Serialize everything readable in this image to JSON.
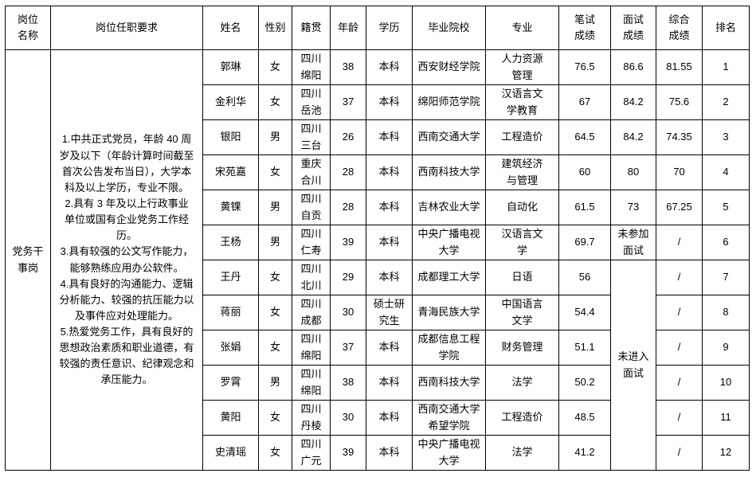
{
  "table": {
    "headers": {
      "position": "岗位\n名称",
      "requirements": "岗位任职要求",
      "name": "姓名",
      "gender": "性别",
      "native_place": "籍贯",
      "age": "年龄",
      "education": "学历",
      "school": "毕业院校",
      "major": "专业",
      "written_score": "笔试\n成绩",
      "interview_score": "面试\n成绩",
      "overall_score": "综合\n成绩",
      "rank": "排名"
    },
    "position_name": "党务干\n事岗",
    "requirements_text": "1.中共正式党员，年龄 40 周\n岁及以下（年龄计算时间截至\n首次公告发布当日），大学本\n科及以上学历，专业不限。\n2.具有 3 年及以上行政事业\n单位或国有企业党务工作经\n历。\n3.具有较强的公文写作能力，\n能够熟练应用办公软件。\n4.具有良好的沟通能力、逻辑\n分析能力、较强的抗压能力以\n及事件应对处理能力。\n5.热爱党务工作，具有良好的\n思想政治素质和职业道德，有\n较强的责任意识、纪律观念和\n承压能力。",
    "merged_interview_note": "未进入\n面试",
    "rows": [
      {
        "name": "郭琳",
        "gender": "女",
        "native": "四川\n绵阳",
        "age": "38",
        "education": "本科",
        "school": "西安财经学院",
        "major": "人力资源\n管理",
        "written": "76.5",
        "interview": "86.6",
        "overall": "81.55",
        "rank": "1"
      },
      {
        "name": "金利华",
        "gender": "女",
        "native": "四川\n岳池",
        "age": "37",
        "education": "本科",
        "school": "绵阳师范学院",
        "major": "汉语言文\n学教育",
        "written": "67",
        "interview": "84.2",
        "overall": "75.6",
        "rank": "2"
      },
      {
        "name": "银阳",
        "gender": "男",
        "native": "四川\n三台",
        "age": "26",
        "education": "本科",
        "school": "西南交通大学",
        "major": "工程造价",
        "written": "64.5",
        "interview": "84.2",
        "overall": "74.35",
        "rank": "3"
      },
      {
        "name": "宋苑嘉",
        "gender": "女",
        "native": "重庆\n合川",
        "age": "28",
        "education": "本科",
        "school": "西南科技大学",
        "major": "建筑经济\n与管理",
        "written": "60",
        "interview": "80",
        "overall": "70",
        "rank": "4"
      },
      {
        "name": "黄锞",
        "gender": "男",
        "native": "四川\n自贡",
        "age": "28",
        "education": "本科",
        "school": "吉林农业大学",
        "major": "自动化",
        "written": "61.5",
        "interview": "73",
        "overall": "67.25",
        "rank": "5"
      },
      {
        "name": "王杨",
        "gender": "男",
        "native": "四川\n仁寿",
        "age": "39",
        "education": "本科",
        "school": "中央广播电视\n大学",
        "major": "汉语言文\n学",
        "written": "69.7",
        "interview": "未参加\n面试",
        "overall": "/",
        "rank": "6"
      },
      {
        "name": "王丹",
        "gender": "女",
        "native": "四川\n北川",
        "age": "29",
        "education": "本科",
        "school": "成都理工大学",
        "major": "日语",
        "written": "56",
        "overall": "/",
        "rank": "7"
      },
      {
        "name": "蒋丽",
        "gender": "女",
        "native": "四川\n成都",
        "age": "30",
        "education": "硕士研\n究生",
        "school": "青海民族大学",
        "major": "中国语言\n文学",
        "written": "54.4",
        "overall": "/",
        "rank": "8"
      },
      {
        "name": "张娟",
        "gender": "女",
        "native": "四川\n绵阳",
        "age": "37",
        "education": "本科",
        "school": "成都信息工程\n学院",
        "major": "财务管理",
        "written": "51.1",
        "overall": "/",
        "rank": "9"
      },
      {
        "name": "罗霄",
        "gender": "男",
        "native": "四川\n绵阳",
        "age": "38",
        "education": "本科",
        "school": "西南科技大学",
        "major": "法学",
        "written": "50.2",
        "overall": "/",
        "rank": "10"
      },
      {
        "name": "黄阳",
        "gender": "女",
        "native": "四川\n丹棱",
        "age": "30",
        "education": "本科",
        "school": "西南交通大学\n希望学院",
        "major": "工程造价",
        "written": "48.5",
        "overall": "/",
        "rank": "11"
      },
      {
        "name": "史清瑶",
        "gender": "女",
        "native": "四川\n广元",
        "age": "39",
        "education": "本科",
        "school": "中央广播电视\n大学",
        "major": "法学",
        "written": "41.2",
        "overall": "/",
        "rank": "12"
      }
    ]
  }
}
